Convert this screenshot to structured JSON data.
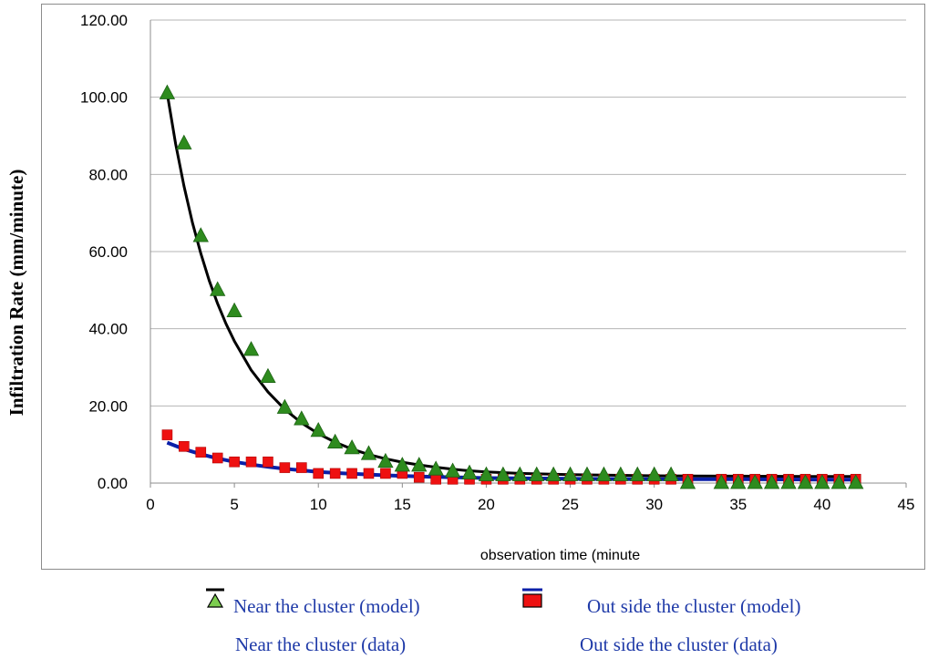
{
  "chart_data": {
    "type": "scatter",
    "xlabel": "observation time  (minute",
    "ylabel": "Infiltration  Rate (mm/minute)",
    "xlim": [
      0,
      45
    ],
    "ylim": [
      0,
      120
    ],
    "x_ticks": [
      "0",
      "5",
      "10",
      "15",
      "20",
      "25",
      "30",
      "35",
      "40",
      "45"
    ],
    "y_ticks": [
      "0.00",
      "20.00",
      "40.00",
      "60.00",
      "80.00",
      "100.00",
      "120.00"
    ],
    "grid": "horizontal",
    "legend_position": "bottom",
    "series": [
      {
        "name": "Near the cluster (model)",
        "kind": "line",
        "color": "#000000",
        "x": [
          1,
          1.5,
          2,
          2.5,
          3,
          3.5,
          4,
          4.5,
          5,
          6,
          7,
          8,
          9,
          10,
          11,
          12,
          13,
          14,
          15,
          16,
          17,
          18,
          19,
          20,
          22,
          25,
          30,
          35,
          40,
          42
        ],
        "y": [
          101,
          88,
          77,
          67.5,
          59.5,
          52.5,
          46.5,
          41.3,
          36.8,
          29.3,
          23.6,
          19.1,
          15.6,
          12.8,
          10.6,
          8.8,
          7.4,
          6.3,
          5.4,
          4.7,
          4.1,
          3.6,
          3.2,
          2.9,
          2.5,
          2.2,
          1.9,
          1.8,
          1.7,
          1.7
        ]
      },
      {
        "name": "Near the cluster (data)",
        "kind": "marker",
        "marker": "triangle",
        "color": "#2e8b1e",
        "x": [
          1,
          2,
          3,
          4,
          5,
          6,
          7,
          8,
          9,
          10,
          11,
          12,
          13,
          14,
          15,
          16,
          17,
          18,
          19,
          20,
          21,
          22,
          23,
          24,
          25,
          26,
          27,
          28,
          29,
          30,
          31,
          32,
          34,
          35,
          36,
          37,
          38,
          39,
          40,
          41,
          42
        ],
        "y": [
          101,
          88,
          64,
          50,
          44.5,
          34.5,
          27.5,
          19.5,
          16.5,
          13.5,
          10.5,
          9,
          7.5,
          5.5,
          4.5,
          4.5,
          3.5,
          3,
          2.5,
          2,
          2,
          2,
          2,
          2,
          2,
          2,
          2,
          2,
          2,
          2,
          2,
          0,
          0,
          0,
          0,
          0,
          0,
          0,
          0,
          0,
          0
        ]
      },
      {
        "name": "Out side the cluster (model)",
        "kind": "line",
        "color": "#0a1fa8",
        "x": [
          1,
          2,
          3,
          4,
          5,
          6,
          7,
          8,
          9,
          10,
          12,
          14,
          16,
          18,
          20,
          25,
          30,
          35,
          40,
          42
        ],
        "y": [
          10.5,
          8.8,
          7.5,
          6.4,
          5.5,
          4.8,
          4.2,
          3.7,
          3.3,
          2.9,
          2.4,
          2.0,
          1.7,
          1.5,
          1.3,
          1.1,
          1.0,
          1.0,
          0.9,
          0.9
        ]
      },
      {
        "name": "Out side the cluster (data)",
        "kind": "marker",
        "marker": "square",
        "color": "#ee1111",
        "x": [
          1,
          2,
          3,
          4,
          5,
          6,
          7,
          8,
          9,
          10,
          11,
          12,
          13,
          14,
          15,
          16,
          17,
          18,
          19,
          20,
          21,
          22,
          23,
          24,
          25,
          26,
          27,
          28,
          29,
          30,
          31,
          32,
          34,
          35,
          36,
          37,
          38,
          39,
          40,
          41,
          42
        ],
        "y": [
          12.5,
          9.5,
          8,
          6.5,
          5.5,
          5.5,
          5.5,
          4,
          4,
          2.5,
          2.5,
          2.5,
          2.5,
          2.5,
          2.5,
          1.5,
          1,
          1,
          1,
          1,
          1,
          1,
          1,
          1,
          1,
          1,
          1,
          1,
          1,
          1,
          1,
          1,
          1,
          1,
          1,
          1,
          1,
          1,
          1,
          1,
          1
        ]
      }
    ]
  },
  "legend": {
    "items": [
      {
        "label": "Near the cluster (model)",
        "color": "#000000"
      },
      {
        "label": "Out side the cluster (model)",
        "color": "#0a1fa8"
      },
      {
        "label": "Near the cluster (data)",
        "color": "#2e8b1e"
      },
      {
        "label": "Out side the cluster (data)",
        "color": "#ee1111"
      }
    ]
  }
}
